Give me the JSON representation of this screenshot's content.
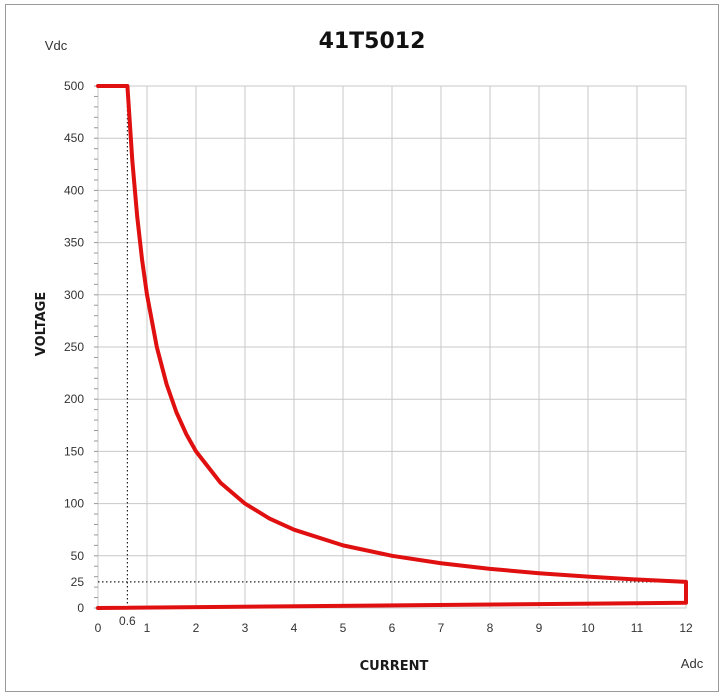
{
  "chart_data": {
    "type": "line",
    "title": "41T5012",
    "xlabel": "CURRENT",
    "ylabel": "VOLTAGE",
    "x_unit": "Adc",
    "y_unit": "Vdc",
    "xlim": [
      0,
      12
    ],
    "ylim": [
      0,
      500
    ],
    "x_ticks": [
      0,
      1,
      2,
      3,
      4,
      5,
      6,
      7,
      8,
      9,
      10,
      11,
      12
    ],
    "y_ticks": [
      0,
      50,
      100,
      150,
      200,
      250,
      300,
      350,
      400,
      450,
      500
    ],
    "extra_x_tick": 0.6,
    "extra_y_tick": 25,
    "grid": true,
    "series": [
      {
        "points": [
          [
            0.0,
            500
          ],
          [
            0.6,
            500
          ],
          [
            0.7,
            428.6
          ],
          [
            0.8,
            375
          ],
          [
            0.9,
            333.3
          ],
          [
            1.0,
            300
          ],
          [
            1.2,
            250
          ],
          [
            1.4,
            214.3
          ],
          [
            1.6,
            187.5
          ],
          [
            1.8,
            166.7
          ],
          [
            2.0,
            150
          ],
          [
            2.5,
            120
          ],
          [
            3.0,
            100
          ],
          [
            3.5,
            85.7
          ],
          [
            4.0,
            75
          ],
          [
            5.0,
            60
          ],
          [
            6.0,
            50
          ],
          [
            7.0,
            42.9
          ],
          [
            8.0,
            37.5
          ],
          [
            9.0,
            33.3
          ],
          [
            10.0,
            30
          ],
          [
            11.0,
            27.3
          ],
          [
            12.0,
            25
          ],
          [
            12.0,
            5
          ],
          [
            0.0,
            0
          ]
        ]
      }
    ],
    "reference_lines": [
      {
        "from": [
          0.6,
          500
        ],
        "to": [
          0.6,
          0
        ]
      },
      {
        "from": [
          0,
          25
        ],
        "to": [
          12,
          25
        ]
      }
    ],
    "colors": {
      "series": "#e01010",
      "grid": "#c8c8c8",
      "reference": "#222222"
    }
  }
}
